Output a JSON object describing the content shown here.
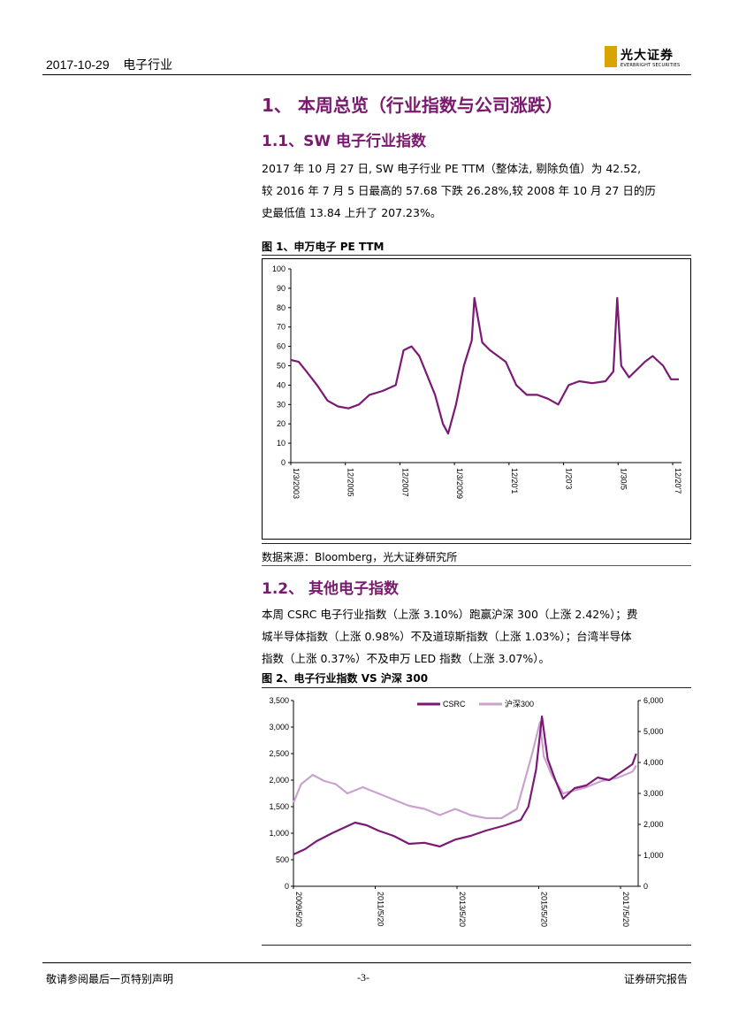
{
  "header": {
    "date": "2017-10-29",
    "industry": "电子行业",
    "logo_cn": "光大证券",
    "logo_en": "EVERBRIGHT SECURITIES"
  },
  "section1": {
    "title": "1、 本周总览（行业指数与公司涨跌）"
  },
  "section1_1": {
    "title": "1.1、SW 电子行业指数",
    "lines": [
      "2017 年 10 月 27 日, SW 电子行业 PE TTM（整体法, 剔除负值）为 42.52,",
      "较 2016 年 7 月 5 日最高的 57.68 下跌 26.28%,较 2008 年 10 月 27 日的历",
      "史最低值 13.84 上升了 207.23%。"
    ]
  },
  "figure1": {
    "title": "图 1、申万电子 PE TTM",
    "source": "数据来源：Bloomberg，光大证券研究所"
  },
  "section1_2": {
    "title": "1.2、 其他电子指数",
    "lines": [
      "本周 CSRC 电子行业指数（上涨 3.10%）跑赢沪深 300（上涨 2.42%）；费",
      "城半导体指数（上涨 0.98%）不及道琼斯指数（上涨 1.03%）；台湾半导体",
      "指数（上涨 0.37%）不及申万 LED 指数（上涨 3.07%）。"
    ]
  },
  "figure2": {
    "title": "图 2、电子行业指数 VS 沪深 300"
  },
  "footer": {
    "left": "敬请参阅最后一页特别声明",
    "center": "-3-",
    "right": "证券研究报告"
  },
  "chart_data": [
    {
      "type": "line",
      "title": "",
      "ylim": [
        0,
        100
      ],
      "yticks": [
        "0",
        "10",
        "20",
        "30",
        "40",
        "50",
        "60",
        "70",
        "80",
        "90",
        "100"
      ],
      "xtick_labels": [
        "1/3/2003",
        "12/2005",
        "12/2007",
        "1/3/2009",
        "12/20'1",
        "1/20'3",
        "1/30/5",
        "12/20'7"
      ],
      "color": "#7b1a74",
      "series": [
        {
          "x": [
            2003.0,
            2003.3,
            2003.6,
            2004.0,
            2004.4,
            2004.8,
            2005.2,
            2005.6,
            2006.0,
            2006.5,
            2007.0,
            2007.3,
            2007.6,
            2007.9,
            2008.2,
            2008.5,
            2008.8,
            2009.0,
            2009.3,
            2009.6,
            2009.9,
            2010.0,
            2010.3,
            2010.6,
            2010.9,
            2011.2,
            2011.6,
            2012.0,
            2012.4,
            2012.8,
            2013.2,
            2013.6,
            2014.0,
            2014.5,
            2015.0,
            2015.3,
            2015.45,
            2015.6,
            2015.9,
            2016.2,
            2016.5,
            2016.8,
            2017.2,
            2017.5,
            2017.8
          ],
          "values": [
            53,
            52,
            47,
            40,
            32,
            29,
            28,
            30,
            35,
            37,
            40,
            58,
            60,
            55,
            45,
            35,
            20,
            15,
            30,
            50,
            63,
            85,
            62,
            58,
            55,
            52,
            40,
            35,
            35,
            33,
            30,
            40,
            42,
            41,
            42,
            47,
            85,
            50,
            44,
            48,
            52,
            55,
            50,
            43,
            43
          ]
        }
      ]
    },
    {
      "type": "line",
      "title": "",
      "ylim_left": [
        0,
        3500
      ],
      "ylim_right": [
        0,
        6000
      ],
      "yticks_left": [
        "0",
        "500",
        "1,000",
        "1,500",
        "2,000",
        "2,500",
        "3,000",
        "3,500"
      ],
      "yticks_right": [
        "0",
        "1,000",
        "2,000",
        "3,000",
        "4,000",
        "5,000",
        "6,000"
      ],
      "xtick_labels": [
        "2009/5/20",
        "2011/5/20",
        "2013/5/20",
        "2015/5/20",
        "2017/5/20"
      ],
      "legend": [
        "CSRC",
        "沪深300"
      ],
      "series": [
        {
          "name": "CSRC",
          "axis": "left",
          "color": "#7b1a74",
          "x": [
            2009.0,
            2009.3,
            2009.6,
            2010.0,
            2010.3,
            2010.6,
            2010.9,
            2011.2,
            2011.6,
            2012.0,
            2012.4,
            2012.8,
            2013.2,
            2013.6,
            2014.0,
            2014.5,
            2014.9,
            2015.1,
            2015.3,
            2015.45,
            2015.6,
            2015.8,
            2016.0,
            2016.3,
            2016.6,
            2016.9,
            2017.2,
            2017.5,
            2017.8,
            2017.9
          ],
          "values": [
            600,
            700,
            850,
            1000,
            1100,
            1200,
            1150,
            1050,
            950,
            800,
            820,
            750,
            880,
            950,
            1050,
            1150,
            1250,
            1500,
            2200,
            3200,
            2400,
            2000,
            1650,
            1850,
            1900,
            2050,
            2000,
            2150,
            2300,
            2500
          ]
        },
        {
          "name": "沪深300",
          "axis": "right",
          "color": "#c9a3cd",
          "x": [
            2009.0,
            2009.2,
            2009.5,
            2009.8,
            2010.1,
            2010.4,
            2010.8,
            2011.2,
            2011.6,
            2012.0,
            2012.4,
            2012.8,
            2013.2,
            2013.6,
            2014.0,
            2014.4,
            2014.8,
            2015.0,
            2015.2,
            2015.4,
            2015.5,
            2015.7,
            2016.0,
            2016.3,
            2016.6,
            2017.0,
            2017.4,
            2017.8,
            2017.9
          ],
          "values": [
            2700,
            3300,
            3600,
            3400,
            3300,
            3000,
            3200,
            3000,
            2800,
            2600,
            2500,
            2300,
            2500,
            2300,
            2200,
            2200,
            2500,
            3400,
            4300,
            5300,
            4200,
            3600,
            3000,
            3100,
            3200,
            3400,
            3500,
            3700,
            3900
          ]
        }
      ]
    }
  ]
}
